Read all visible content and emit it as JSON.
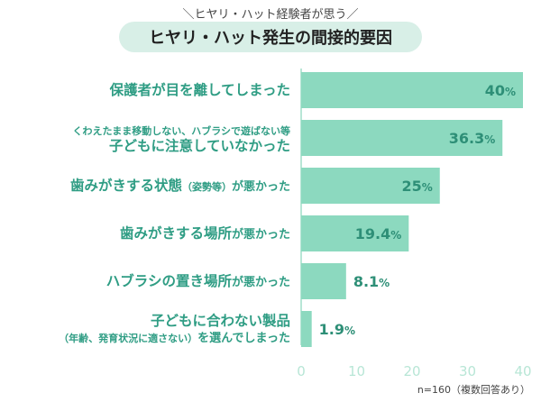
{
  "header": {
    "subtitle": "＼ヒヤリ・ハット経験者が思う／",
    "title": "ヒヤリ・ハット発生の間接的要因"
  },
  "footnote": "n=160（複数回答あり）",
  "colors": {
    "bar": "#8cd9bf",
    "accent_text": "#2f9d84",
    "value_text": "#2e8f77",
    "axis": "#b8e6d6",
    "title_bg": "#d8efe7"
  },
  "chart_data": {
    "type": "bar",
    "orientation": "horizontal",
    "title": "ヒヤリ・ハット発生の間接的要因",
    "xlabel": "",
    "ylabel": "",
    "xlim": [
      0,
      40
    ],
    "ticks": [
      0,
      10,
      20,
      30,
      40
    ],
    "grid": false,
    "categories": [
      {
        "lines": [
          {
            "parts": [
              {
                "text": "保護者が目を離してしまった",
                "size": "big"
              }
            ]
          }
        ]
      },
      {
        "lines": [
          {
            "parts": [
              {
                "text": "くわえたまま移動しない、ハブラシで遊ばない等",
                "size": "small"
              }
            ]
          },
          {
            "parts": [
              {
                "text": "子どもに注意していなかった",
                "size": "big"
              }
            ]
          }
        ]
      },
      {
        "lines": [
          {
            "parts": [
              {
                "text": "歯みがきする状態",
                "size": "big"
              },
              {
                "text": "（姿勢等）",
                "size": "small"
              },
              {
                "text": "が悪かった",
                "size": "mid"
              }
            ]
          }
        ]
      },
      {
        "lines": [
          {
            "parts": [
              {
                "text": "歯みがきする場所",
                "size": "big"
              },
              {
                "text": "が悪かった",
                "size": "mid"
              }
            ]
          }
        ]
      },
      {
        "lines": [
          {
            "parts": [
              {
                "text": "ハブラシの置き場所",
                "size": "big"
              },
              {
                "text": "が悪かった",
                "size": "mid"
              }
            ]
          }
        ]
      },
      {
        "lines": [
          {
            "parts": [
              {
                "text": "子どもに合わない製品",
                "size": "big"
              }
            ]
          },
          {
            "parts": [
              {
                "text": "（年齢、発育状況に適さない）",
                "size": "small"
              },
              {
                "text": "を選んでしまった",
                "size": "mid"
              }
            ]
          }
        ]
      }
    ],
    "values": [
      40,
      36.3,
      25,
      19.4,
      8.1,
      1.9
    ],
    "value_labels": [
      {
        "num": "40",
        "unit": "%"
      },
      {
        "num": "36.3",
        "unit": "%"
      },
      {
        "num": "25",
        "unit": "%"
      },
      {
        "num": "19.4",
        "unit": "%"
      },
      {
        "num": "8.1",
        "unit": "%"
      },
      {
        "num": "1.9",
        "unit": "%"
      }
    ]
  }
}
